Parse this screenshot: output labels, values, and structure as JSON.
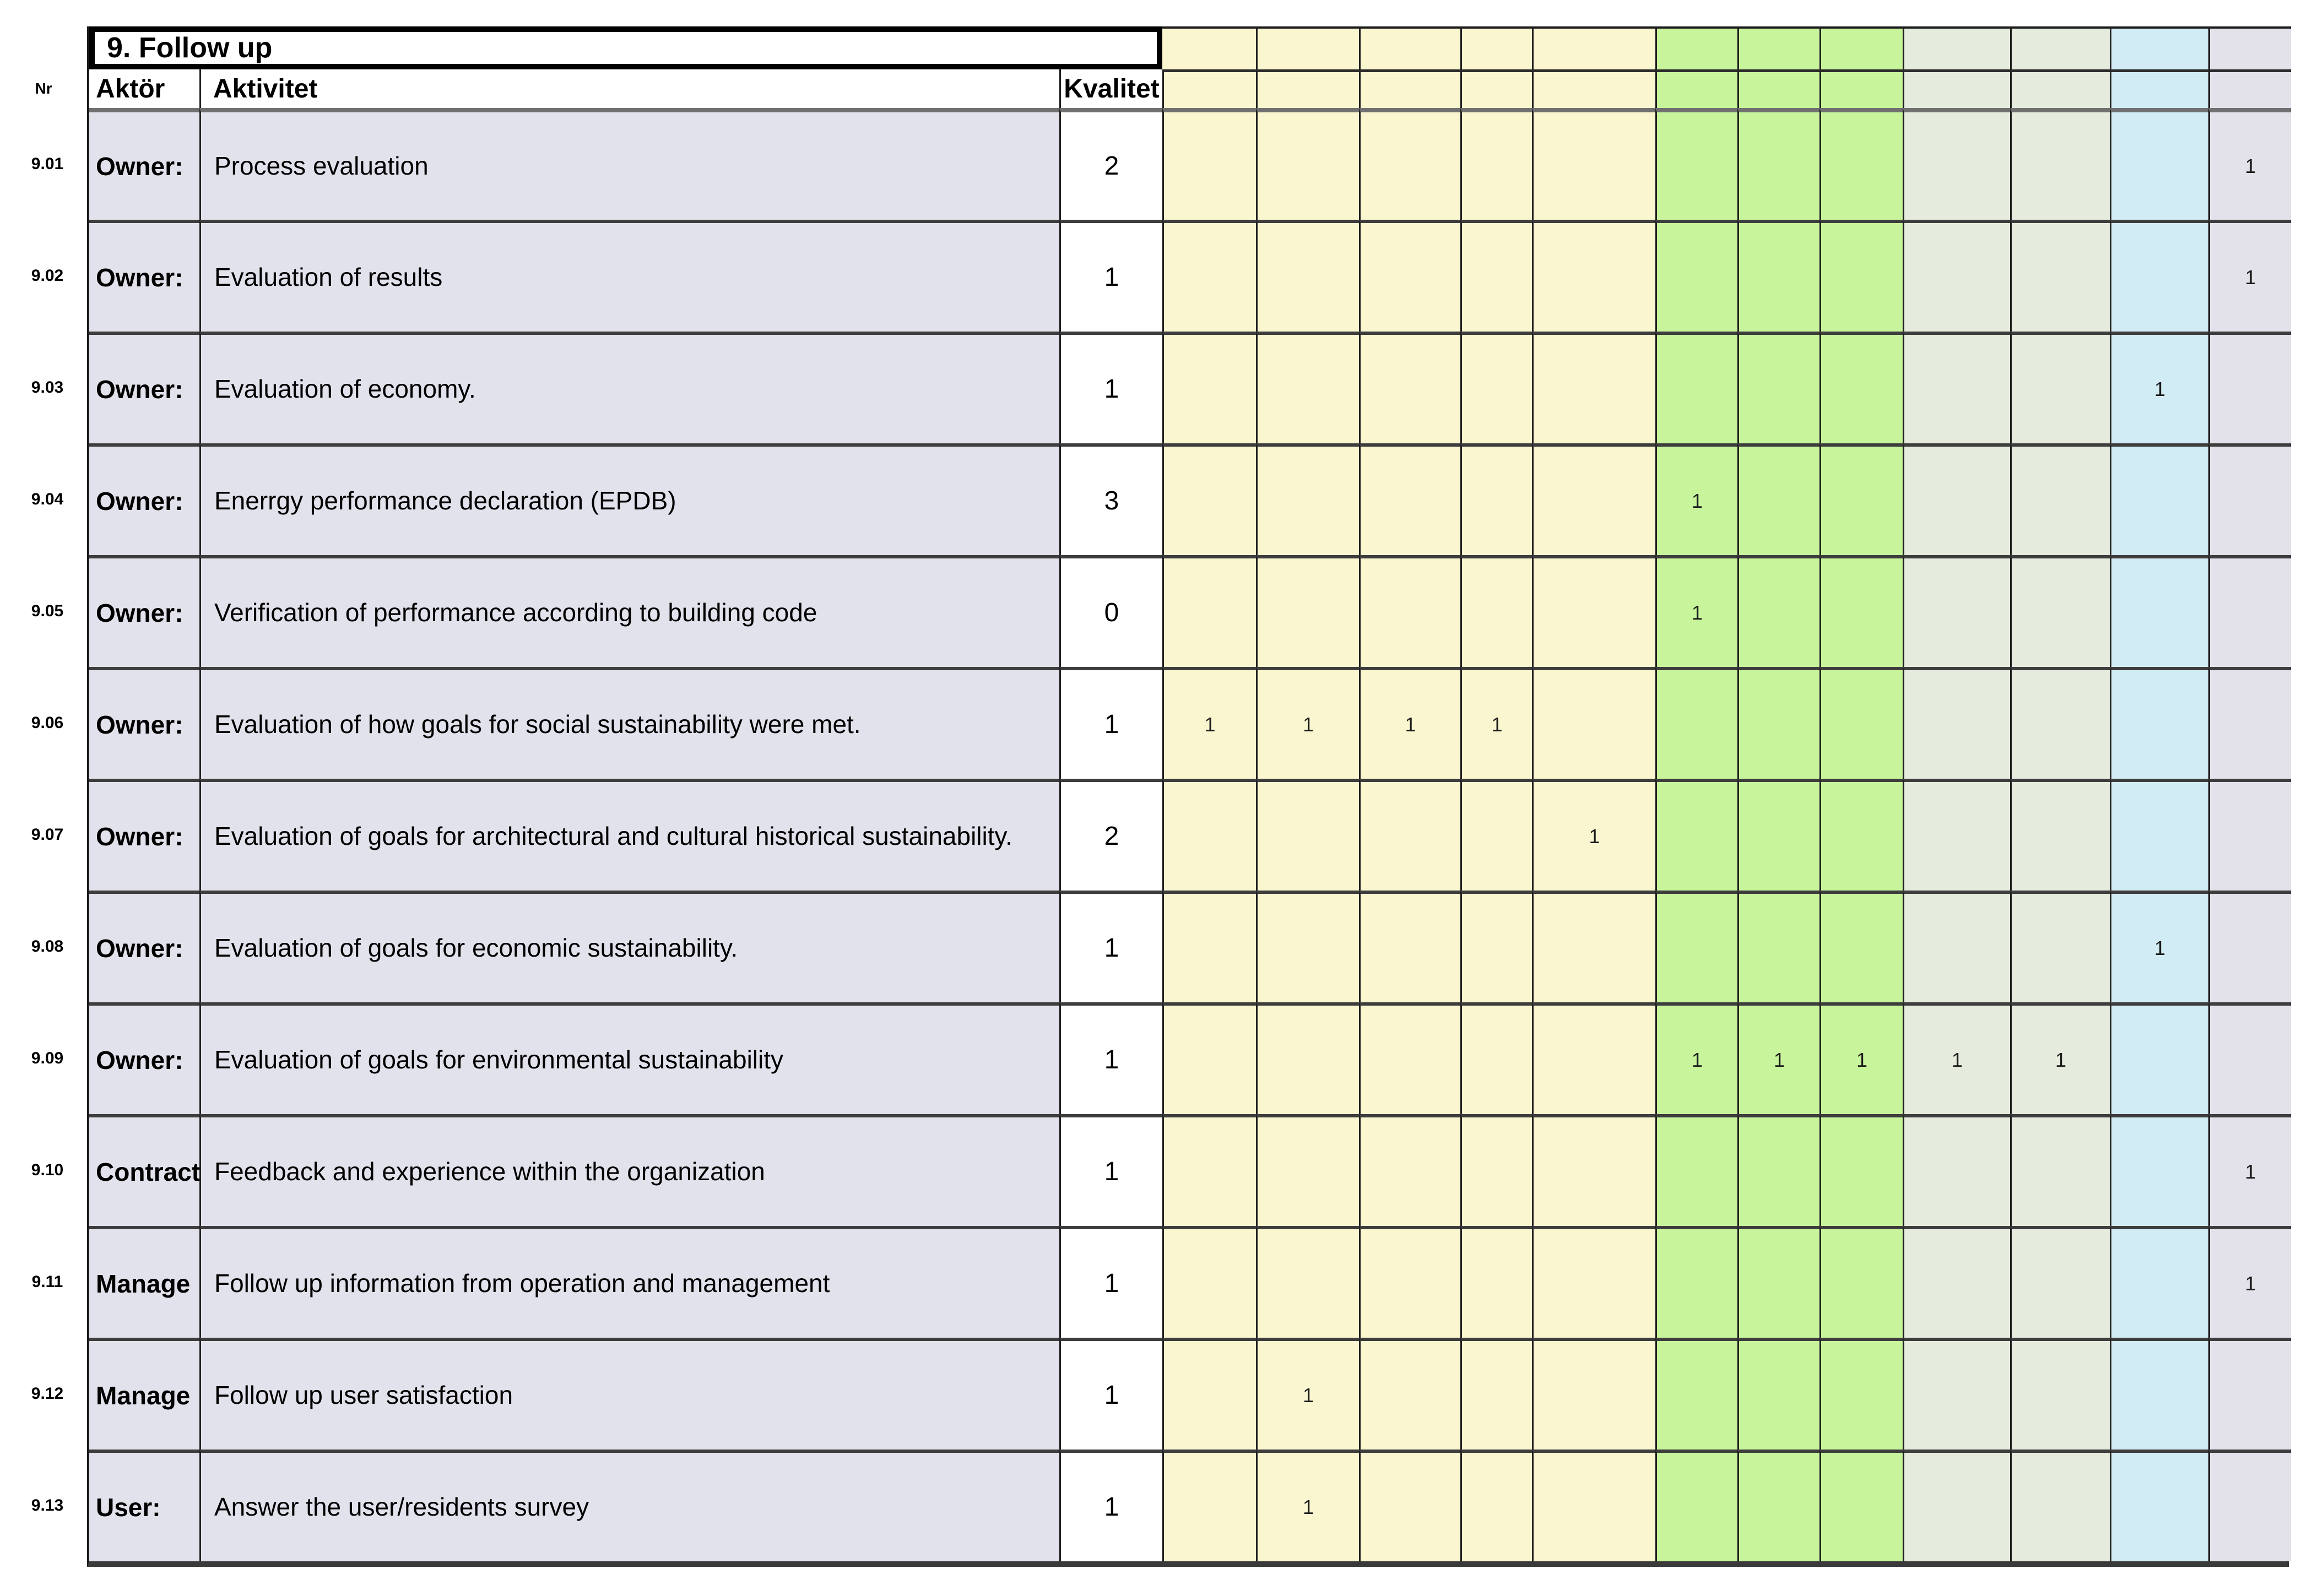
{
  "page": {
    "background": "#ffffff"
  },
  "table": {
    "nr_header": "Nr",
    "section_title": "9. Follow up",
    "column_headers": {
      "aktor": "Aktör",
      "aktivitet": "Aktivitet",
      "kvalitet": "Kvalitet"
    },
    "matrix_column_groups": [
      {
        "name": "yellow",
        "color": "#FAF6D0",
        "count": 5
      },
      {
        "name": "green",
        "color": "#C8F59C",
        "count": 3
      },
      {
        "name": "pale-green",
        "color": "#E5ECDD",
        "count": 2
      },
      {
        "name": "blue",
        "color": "#D2ECF6",
        "count": 1
      },
      {
        "name": "lavender",
        "color": "#E3E1EA",
        "count": 1
      }
    ],
    "rows": [
      {
        "nr": "9.01",
        "aktor": "Owner:",
        "aktivitet": "Process evaluation",
        "kvalitet": "2",
        "marks": {
          "12": "1"
        }
      },
      {
        "nr": "9.02",
        "aktor": "Owner:",
        "aktivitet": "Evaluation of results",
        "kvalitet": "1",
        "marks": {
          "12": "1"
        }
      },
      {
        "nr": "9.03",
        "aktor": "Owner:",
        "aktivitet": "Evaluation of economy.",
        "kvalitet": "1",
        "marks": {
          "11": "1"
        }
      },
      {
        "nr": "9.04",
        "aktor": "Owner:",
        "aktivitet": "Enerrgy performance declaration (EPDB)",
        "kvalitet": "3",
        "marks": {
          "6": "1"
        }
      },
      {
        "nr": "9.05",
        "aktor": "Owner:",
        "aktivitet": "Verification of performance according to building code",
        "kvalitet": "0",
        "marks": {
          "6": "1"
        }
      },
      {
        "nr": "9.06",
        "aktor": "Owner:",
        "aktivitet": "Evaluation of how goals for social sustainability were met.",
        "kvalitet": "1",
        "marks": {
          "1": "1",
          "2": "1",
          "3": "1",
          "4": "1"
        }
      },
      {
        "nr": "9.07",
        "aktor": "Owner:",
        "aktivitet": "Evaluation of goals for architectural and cultural historical sustainability.",
        "kvalitet": "2",
        "marks": {
          "5": "1"
        }
      },
      {
        "nr": "9.08",
        "aktor": "Owner:",
        "aktivitet": "Evaluation of goals for economic sustainability.",
        "kvalitet": "1",
        "marks": {
          "11": "1"
        }
      },
      {
        "nr": "9.09",
        "aktor": "Owner:",
        "aktivitet": "Evaluation of goals for environmental sustainability",
        "kvalitet": "1",
        "marks": {
          "6": "1",
          "7": "1",
          "8": "1",
          "9": "1",
          "10": "1"
        }
      },
      {
        "nr": "9.10",
        "aktor": "Contract",
        "aktivitet": "Feedback and experience within the organization",
        "kvalitet": "1",
        "marks": {
          "12": "1"
        }
      },
      {
        "nr": "9.11",
        "aktor": "Manage",
        "aktivitet": "Follow up information from operation and management",
        "kvalitet": "1",
        "marks": {
          "12": "1"
        }
      },
      {
        "nr": "9.12",
        "aktor": "Manage",
        "aktivitet": "Follow up user satisfaction",
        "kvalitet": "1",
        "marks": {
          "2": "1"
        }
      },
      {
        "nr": "9.13",
        "aktor": "User:",
        "aktivitet": "Answer the user/residents survey",
        "kvalitet": "1",
        "marks": {
          "2": "1"
        }
      }
    ]
  },
  "colors": {
    "grid_line": "#1f1f1f",
    "row_separator": "#3d3d3d",
    "header_separator": "#707070",
    "row_background": "#E2E2EC",
    "white_cell": "#ffffff"
  }
}
